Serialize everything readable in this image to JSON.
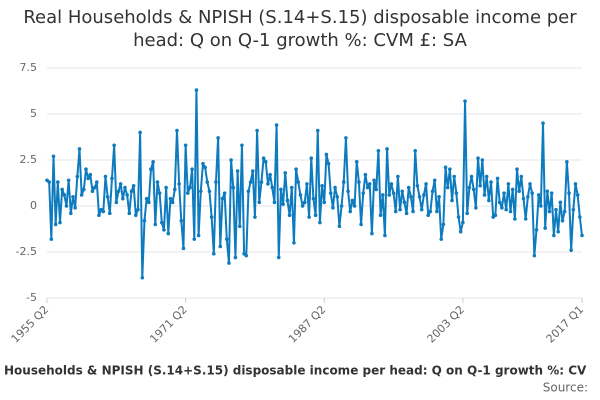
{
  "chart_data": {
    "type": "line",
    "title": "Real Households & NPISH (S.14+S.15) disposable income per head: Q on Q-1 growth %: CVM £: SA",
    "source": "Source:",
    "categories": [
      "1955 Q2",
      null,
      null,
      null,
      null,
      null,
      null,
      null,
      null,
      null,
      null,
      null,
      null,
      null,
      null,
      null,
      null,
      null,
      null,
      null,
      null,
      null,
      null,
      null,
      null,
      null,
      null,
      null,
      null,
      null,
      null,
      null,
      null,
      null,
      null,
      null,
      null,
      null,
      null,
      null,
      null,
      null,
      null,
      null,
      null,
      null,
      null,
      null,
      null,
      null,
      null,
      null,
      null,
      null,
      null,
      null,
      null,
      null,
      null,
      null,
      null,
      null,
      null,
      null,
      "1971 Q2",
      null,
      null,
      null,
      null,
      null,
      null,
      null,
      null,
      null,
      null,
      null,
      null,
      null,
      null,
      null,
      null,
      null,
      null,
      null,
      null,
      null,
      null,
      null,
      null,
      null,
      null,
      null,
      null,
      null,
      null,
      null,
      null,
      null,
      null,
      null,
      null,
      null,
      null,
      null,
      null,
      null,
      null,
      null,
      null,
      null,
      null,
      null,
      null,
      null,
      null,
      null,
      null,
      null,
      null,
      null,
      null,
      null,
      null,
      null,
      null,
      null,
      null,
      null,
      "1987 Q2",
      null,
      null,
      null,
      null,
      null,
      null,
      null,
      null,
      null,
      null,
      null,
      null,
      null,
      null,
      null,
      null,
      null,
      null,
      null,
      null,
      null,
      null,
      null,
      null,
      null,
      null,
      null,
      null,
      null,
      null,
      null,
      null,
      null,
      null,
      null,
      null,
      null,
      null,
      null,
      null,
      null,
      null,
      null,
      null,
      null,
      null,
      null,
      null,
      null,
      null,
      null,
      null,
      null,
      null,
      null,
      null,
      null,
      null,
      null,
      null,
      null,
      null,
      null,
      "2003 Q2",
      null,
      null,
      null,
      null,
      null,
      null,
      null,
      null,
      null,
      null,
      null,
      null,
      null,
      null,
      null,
      null,
      null,
      null,
      null,
      null,
      null,
      null,
      null,
      null,
      null,
      null,
      null,
      null,
      null,
      null,
      null,
      null,
      null,
      null,
      null,
      null,
      null,
      null,
      null,
      null,
      null,
      null,
      null,
      null,
      null,
      null,
      null,
      null,
      null,
      null,
      null,
      null,
      null,
      null,
      "2017 Q1"
    ],
    "series": [
      {
        "name": "Households & NPISH (S.14+S.15) disposable income per head: Q on Q-1 growth %: CV",
        "color": "#0e7bbf",
        "values": [
          1.4,
          1.3,
          -1.8,
          2.7,
          -1.0,
          1.3,
          -0.9,
          0.9,
          0.6,
          0.0,
          1.4,
          -0.4,
          0.5,
          -0.1,
          1.6,
          3.1,
          0.6,
          0.9,
          2.0,
          1.5,
          1.7,
          0.8,
          1.0,
          1.3,
          -0.5,
          -0.2,
          -0.3,
          1.6,
          0.5,
          -0.4,
          1.5,
          3.3,
          0.2,
          0.8,
          1.2,
          0.4,
          1.0,
          0.6,
          -0.4,
          0.8,
          1.1,
          -0.5,
          -0.2,
          4.0,
          -3.9,
          -0.8,
          0.4,
          0.2,
          2.0,
          2.4,
          -1.0,
          1.3,
          0.7,
          -0.9,
          -1.3,
          1.0,
          -1.5,
          0.4,
          0.2,
          0.9,
          4.1,
          1.2,
          -0.8,
          -2.3,
          3.3,
          0.7,
          1.0,
          2.0,
          -1.8,
          6.3,
          -1.6,
          0.8,
          2.3,
          2.1,
          1.3,
          0.8,
          -0.6,
          -2.6,
          1.3,
          3.7,
          -2.2,
          0.4,
          0.7,
          -1.8,
          -3.1,
          2.5,
          1.0,
          -2.8,
          1.9,
          -1.1,
          3.3,
          -2.6,
          -2.7,
          0.8,
          1.3,
          1.9,
          -0.6,
          4.1,
          0.2,
          1.3,
          2.6,
          2.4,
          1.2,
          1.7,
          1.0,
          0.2,
          4.4,
          -2.8,
          0.9,
          0.1,
          1.8,
          0.3,
          -0.5,
          1.0,
          -2.0,
          2.0,
          1.3,
          0.6,
          0.0,
          0.2,
          1.2,
          -0.6,
          2.6,
          0.4,
          -0.5,
          4.1,
          -0.9,
          1.1,
          0.2,
          2.8,
          2.3,
          0.7,
          -0.1,
          1.0,
          0.5,
          -1.1,
          0.0,
          1.3,
          3.7,
          0.8,
          -0.3,
          0.3,
          0.0,
          2.4,
          1.3,
          -1.0,
          0.7,
          1.7,
          1.0,
          1.2,
          -1.5,
          1.4,
          0.9,
          3.0,
          -0.5,
          0.6,
          -1.6,
          3.1,
          0.6,
          1.2,
          0.7,
          -0.3,
          1.6,
          -0.2,
          0.8,
          0.2,
          -0.4,
          1.0,
          0.5,
          -0.3,
          3.0,
          1.1,
          0.5,
          -0.2,
          0.6,
          1.2,
          -0.5,
          -0.3,
          0.8,
          1.4,
          -0.3,
          0.5,
          -1.8,
          -1.0,
          2.1,
          1.0,
          2.0,
          0.3,
          1.6,
          0.7,
          -0.6,
          -1.4,
          -0.9,
          5.7,
          -0.4,
          1.0,
          1.6,
          0.9,
          -0.1,
          2.6,
          1.1,
          2.5,
          0.6,
          1.6,
          0.3,
          1.3,
          -0.6,
          -0.5,
          1.5,
          0.2,
          -0.1,
          0.7,
          -0.2,
          1.2,
          -0.3,
          0.9,
          -0.7,
          2.0,
          0.8,
          1.6,
          0.4,
          -0.7,
          0.5,
          1.2,
          0.7,
          -2.7,
          -1.3,
          0.6,
          0.0,
          4.5,
          -1.2,
          0.8,
          -0.3,
          0.7,
          -1.6,
          -0.2,
          -1.4,
          0.2,
          -0.8,
          -0.3,
          2.4,
          0.7,
          -2.4,
          -0.2,
          1.2,
          0.6,
          -0.6,
          -1.6
        ]
      }
    ],
    "ylim": [
      -5,
      7.5
    ],
    "yticks": [
      7.5,
      5,
      2.5,
      0,
      -2.5,
      -5
    ],
    "grid": true
  }
}
